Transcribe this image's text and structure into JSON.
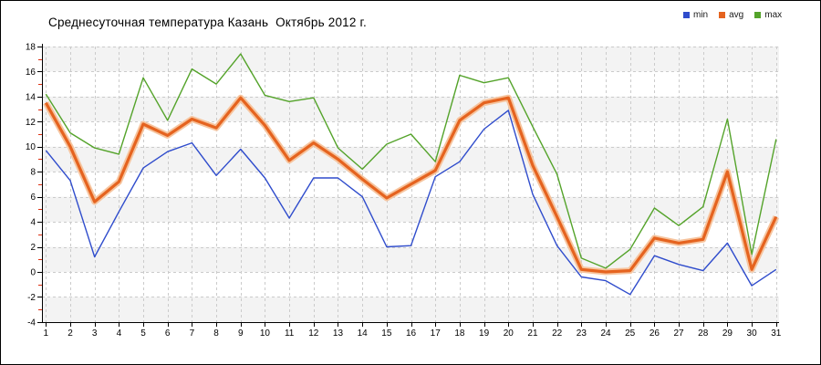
{
  "title": "Среднесуточная температура Казань  Октябрь 2012 г.",
  "legend": {
    "position": "top-right",
    "items": [
      {
        "label": "min",
        "color": "#2f4ccc"
      },
      {
        "label": "avg",
        "color": "#e5631f"
      },
      {
        "label": "max",
        "color": "#54a32a"
      }
    ]
  },
  "colors": {
    "band": "#f3f3f3",
    "grid": "#cbcbcb",
    "axis": "#000000",
    "minor_tick": "#dd2e10",
    "text": "#000000"
  },
  "chart_data": {
    "type": "line",
    "title": "Среднесуточная температура Казань  Октябрь 2012 г.",
    "xlabel": "",
    "ylabel": "",
    "x": [
      1,
      2,
      3,
      4,
      5,
      6,
      7,
      8,
      9,
      10,
      11,
      12,
      13,
      14,
      15,
      16,
      17,
      18,
      19,
      20,
      21,
      22,
      23,
      24,
      25,
      26,
      27,
      28,
      29,
      30,
      31
    ],
    "x_tick_labels": [
      "1",
      "2",
      "3",
      "4",
      "5",
      "6",
      "7",
      "8",
      "9",
      "10",
      "11",
      "12",
      "13",
      "14",
      "15",
      "16",
      "17",
      "18",
      "19",
      "20",
      "21",
      "22",
      "23",
      "24",
      "25",
      "26",
      "27",
      "28",
      "29",
      "30",
      "31"
    ],
    "ylim": [
      -4,
      18
    ],
    "y_tick_labels": [
      "-4",
      "-2",
      "0",
      "2",
      "4",
      "6",
      "8",
      "10",
      "12",
      "14",
      "16",
      "18"
    ],
    "ytick_major": 2,
    "ytick_minor": 1,
    "grid": true,
    "legend_position": "top-right",
    "series": [
      {
        "name": "min",
        "color": "#2f4ccc",
        "width": 1.4,
        "values": [
          9.7,
          7.3,
          1.2,
          4.8,
          8.3,
          9.6,
          10.3,
          7.7,
          9.8,
          7.5,
          4.3,
          7.5,
          7.5,
          6.0,
          2.0,
          2.1,
          7.6,
          8.8,
          11.4,
          12.9,
          6.2,
          2.1,
          -0.4,
          -0.7,
          -1.8,
          1.3,
          0.6,
          0.1,
          2.3,
          -1.1,
          0.2
        ]
      },
      {
        "name": "avg",
        "color": "#e5631f",
        "width": 3.2,
        "halo": "#f6c49e",
        "halo_width": 7,
        "values": [
          13.5,
          10.0,
          5.6,
          7.2,
          11.8,
          10.9,
          12.2,
          11.5,
          13.9,
          11.7,
          8.9,
          10.3,
          9.0,
          7.4,
          5.9,
          7.0,
          8.1,
          12.1,
          13.5,
          13.9,
          8.5,
          4.4,
          0.2,
          0.0,
          0.1,
          2.7,
          2.3,
          2.6,
          8.0,
          0.2,
          4.4
        ]
      },
      {
        "name": "max",
        "color": "#54a32a",
        "width": 1.4,
        "values": [
          14.2,
          11.1,
          9.9,
          9.4,
          15.5,
          12.1,
          16.2,
          15.0,
          17.4,
          14.1,
          13.6,
          13.9,
          9.9,
          8.2,
          10.2,
          11.0,
          8.8,
          15.7,
          15.1,
          15.5,
          11.6,
          7.8,
          1.1,
          0.3,
          1.8,
          5.1,
          3.7,
          5.2,
          12.2,
          1.4,
          10.6
        ]
      }
    ]
  }
}
